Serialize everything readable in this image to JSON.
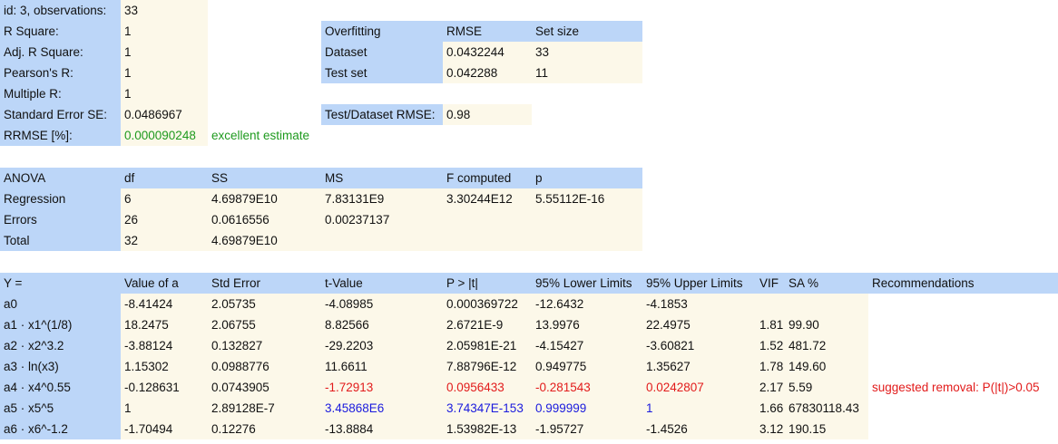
{
  "summary": {
    "rows": [
      {
        "label": "id: 3, observations:",
        "value": "33"
      },
      {
        "label": "R Square:",
        "value": "1"
      },
      {
        "label": "Adj. R Square:",
        "value": "1"
      },
      {
        "label": "Pearson's R:",
        "value": "1"
      },
      {
        "label": "Multiple R:",
        "value": "1"
      },
      {
        "label": "Standard Error SE:",
        "value": "0.0486967"
      },
      {
        "label": "RRMSE [%]:",
        "value": "0.000090248"
      }
    ],
    "rrmse_note": "excellent estimate"
  },
  "overfitting": {
    "headers": [
      "Overfitting",
      "RMSE",
      "Set size"
    ],
    "rows": [
      [
        "Dataset",
        "0.0432244",
        "33"
      ],
      [
        "Test set",
        "0.042288",
        "11"
      ]
    ],
    "ratio_label": "Test/Dataset RMSE:",
    "ratio_value": "0.98"
  },
  "anova": {
    "headers": [
      "ANOVA",
      "df",
      "SS",
      "MS",
      "F computed",
      "p"
    ],
    "rows": [
      [
        "Regression",
        "6",
        "4.69879E10",
        "7.83131E9",
        "3.30244E12",
        "5.55112E-16"
      ],
      [
        "Errors",
        "26",
        "0.0616556",
        "0.00237137",
        "",
        ""
      ],
      [
        "Total",
        "32",
        "4.69879E10",
        "",
        "",
        ""
      ]
    ]
  },
  "coefficients": {
    "headers": [
      "Y =",
      "Value of a",
      "Std Error",
      "t-Value",
      "P > |t|",
      "95% Lower Limits",
      "95% Upper Limits",
      "VIF",
      "SA %",
      "Recommendations"
    ],
    "rows": [
      [
        "a0",
        "-8.41424",
        "2.05735",
        "-4.08985",
        "0.000369722",
        "-12.6432",
        "-4.1853",
        "",
        "",
        ""
      ],
      [
        "a1 · x1^(1/8)",
        "18.2475",
        "2.06755",
        "8.82566",
        "2.6721E-9",
        "13.9976",
        "22.4975",
        "1.81",
        "99.90",
        ""
      ],
      [
        "a2 · x2^3.2",
        "-3.88124",
        "0.132827",
        "-29.2203",
        "2.05981E-21",
        "-4.15427",
        "-3.60821",
        "1.52",
        "481.72",
        ""
      ],
      [
        "a3 · ln(x3)",
        "1.15302",
        "0.0988776",
        "11.6611",
        "7.88796E-12",
        "0.949775",
        "1.35627",
        "1.78",
        "149.60",
        ""
      ],
      [
        "a4 · x4^0.55",
        "-0.128631",
        "0.0743905",
        "-1.72913",
        "0.0956433",
        "-0.281543",
        "0.0242807",
        "2.17",
        "5.59",
        "suggested removal: P(|t|)>0.05"
      ],
      [
        "a5 · x5^5",
        "1",
        "2.89128E-7",
        "3.45868E6",
        "3.74347E-153",
        "0.999999",
        "1",
        "1.66",
        "67830118.43",
        ""
      ],
      [
        "a6 · x6^-1.2",
        "-1.70494",
        "0.12276",
        "-13.8884",
        "1.53982E-13",
        "-1.95727",
        "-1.4526",
        "3.12",
        "190.15",
        ""
      ]
    ]
  },
  "colors": {
    "header_bg": "#bcd6f8",
    "value_bg": "#fcf8e9",
    "good": "#1e9a1e",
    "warning": "#e21b1b",
    "highlight": "#1b1bdd"
  }
}
